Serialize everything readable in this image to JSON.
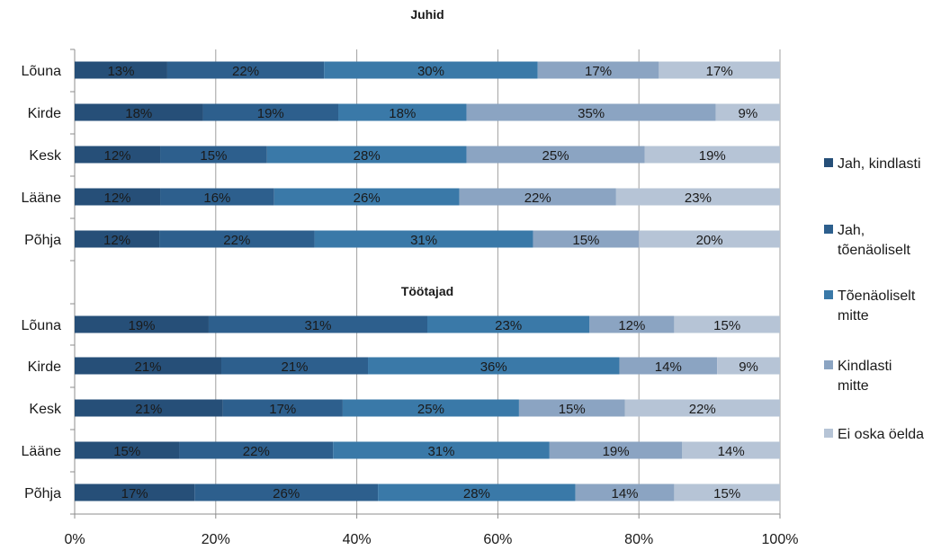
{
  "chart_data": {
    "type": "bar",
    "orientation": "horizontal",
    "stacked": "percent",
    "x_ticks": [
      "0%",
      "20%",
      "40%",
      "60%",
      "80%",
      "100%"
    ],
    "xlim": [
      0,
      100
    ],
    "grid": "vertical",
    "legend_position": "right",
    "series_names": [
      "Jah, kindlasti",
      "Jah, tõenäoliselt",
      "Tõenäoliselt mitte",
      "Kindlasti mitte",
      "Ei oska öelda"
    ],
    "colors": [
      "#264f78",
      "#2d5f8d",
      "#3a79a8",
      "#8ba4c2",
      "#b6c4d6"
    ],
    "groups": [
      {
        "title": "Juhid",
        "categories": [
          "Lõuna",
          "Kirde",
          "Kesk",
          "Lääne",
          "Põhja"
        ],
        "values": [
          [
            13,
            22,
            30,
            17,
            17
          ],
          [
            18,
            19,
            18,
            35,
            9
          ],
          [
            12,
            15,
            28,
            25,
            19
          ],
          [
            12,
            16,
            26,
            22,
            23
          ],
          [
            12,
            22,
            31,
            15,
            20
          ]
        ],
        "labels": [
          [
            "13%",
            "22%",
            "30%",
            "17%",
            "17%"
          ],
          [
            "18%",
            "19%",
            "18%",
            "35%",
            "9%"
          ],
          [
            "12%",
            "15%",
            "28%",
            "25%",
            "19%"
          ],
          [
            "12%",
            "16%",
            "26%",
            "22%",
            "23%"
          ],
          [
            "12%",
            "22%",
            "31%",
            "15%",
            "20%"
          ]
        ]
      },
      {
        "title": "Töötajad",
        "categories": [
          "Lõuna",
          "Kirde",
          "Kesk",
          "Lääne",
          "Põhja"
        ],
        "values": [
          [
            19,
            31,
            23,
            12,
            15
          ],
          [
            21,
            21,
            36,
            14,
            9
          ],
          [
            21,
            17,
            25,
            15,
            22
          ],
          [
            15,
            22,
            31,
            19,
            14
          ],
          [
            17,
            26,
            28,
            14,
            15
          ]
        ],
        "labels": [
          [
            "19%",
            "31%",
            "23%",
            "12%",
            "15%"
          ],
          [
            "21%",
            "21%",
            "36%",
            "14%",
            "9%"
          ],
          [
            "21%",
            "17%",
            "25%",
            "15%",
            "22%"
          ],
          [
            "15%",
            "22%",
            "31%",
            "19%",
            "14%"
          ],
          [
            "17%",
            "26%",
            "28%",
            "14%",
            "15%"
          ]
        ]
      }
    ],
    "legend": [
      [
        "Jah, kindlasti"
      ],
      [
        "Jah,",
        "tõenäoliselt"
      ],
      [
        "Tõenäoliselt",
        "mitte"
      ],
      [
        "Kindlasti",
        "mitte"
      ],
      [
        "Ei oska öelda"
      ]
    ]
  }
}
